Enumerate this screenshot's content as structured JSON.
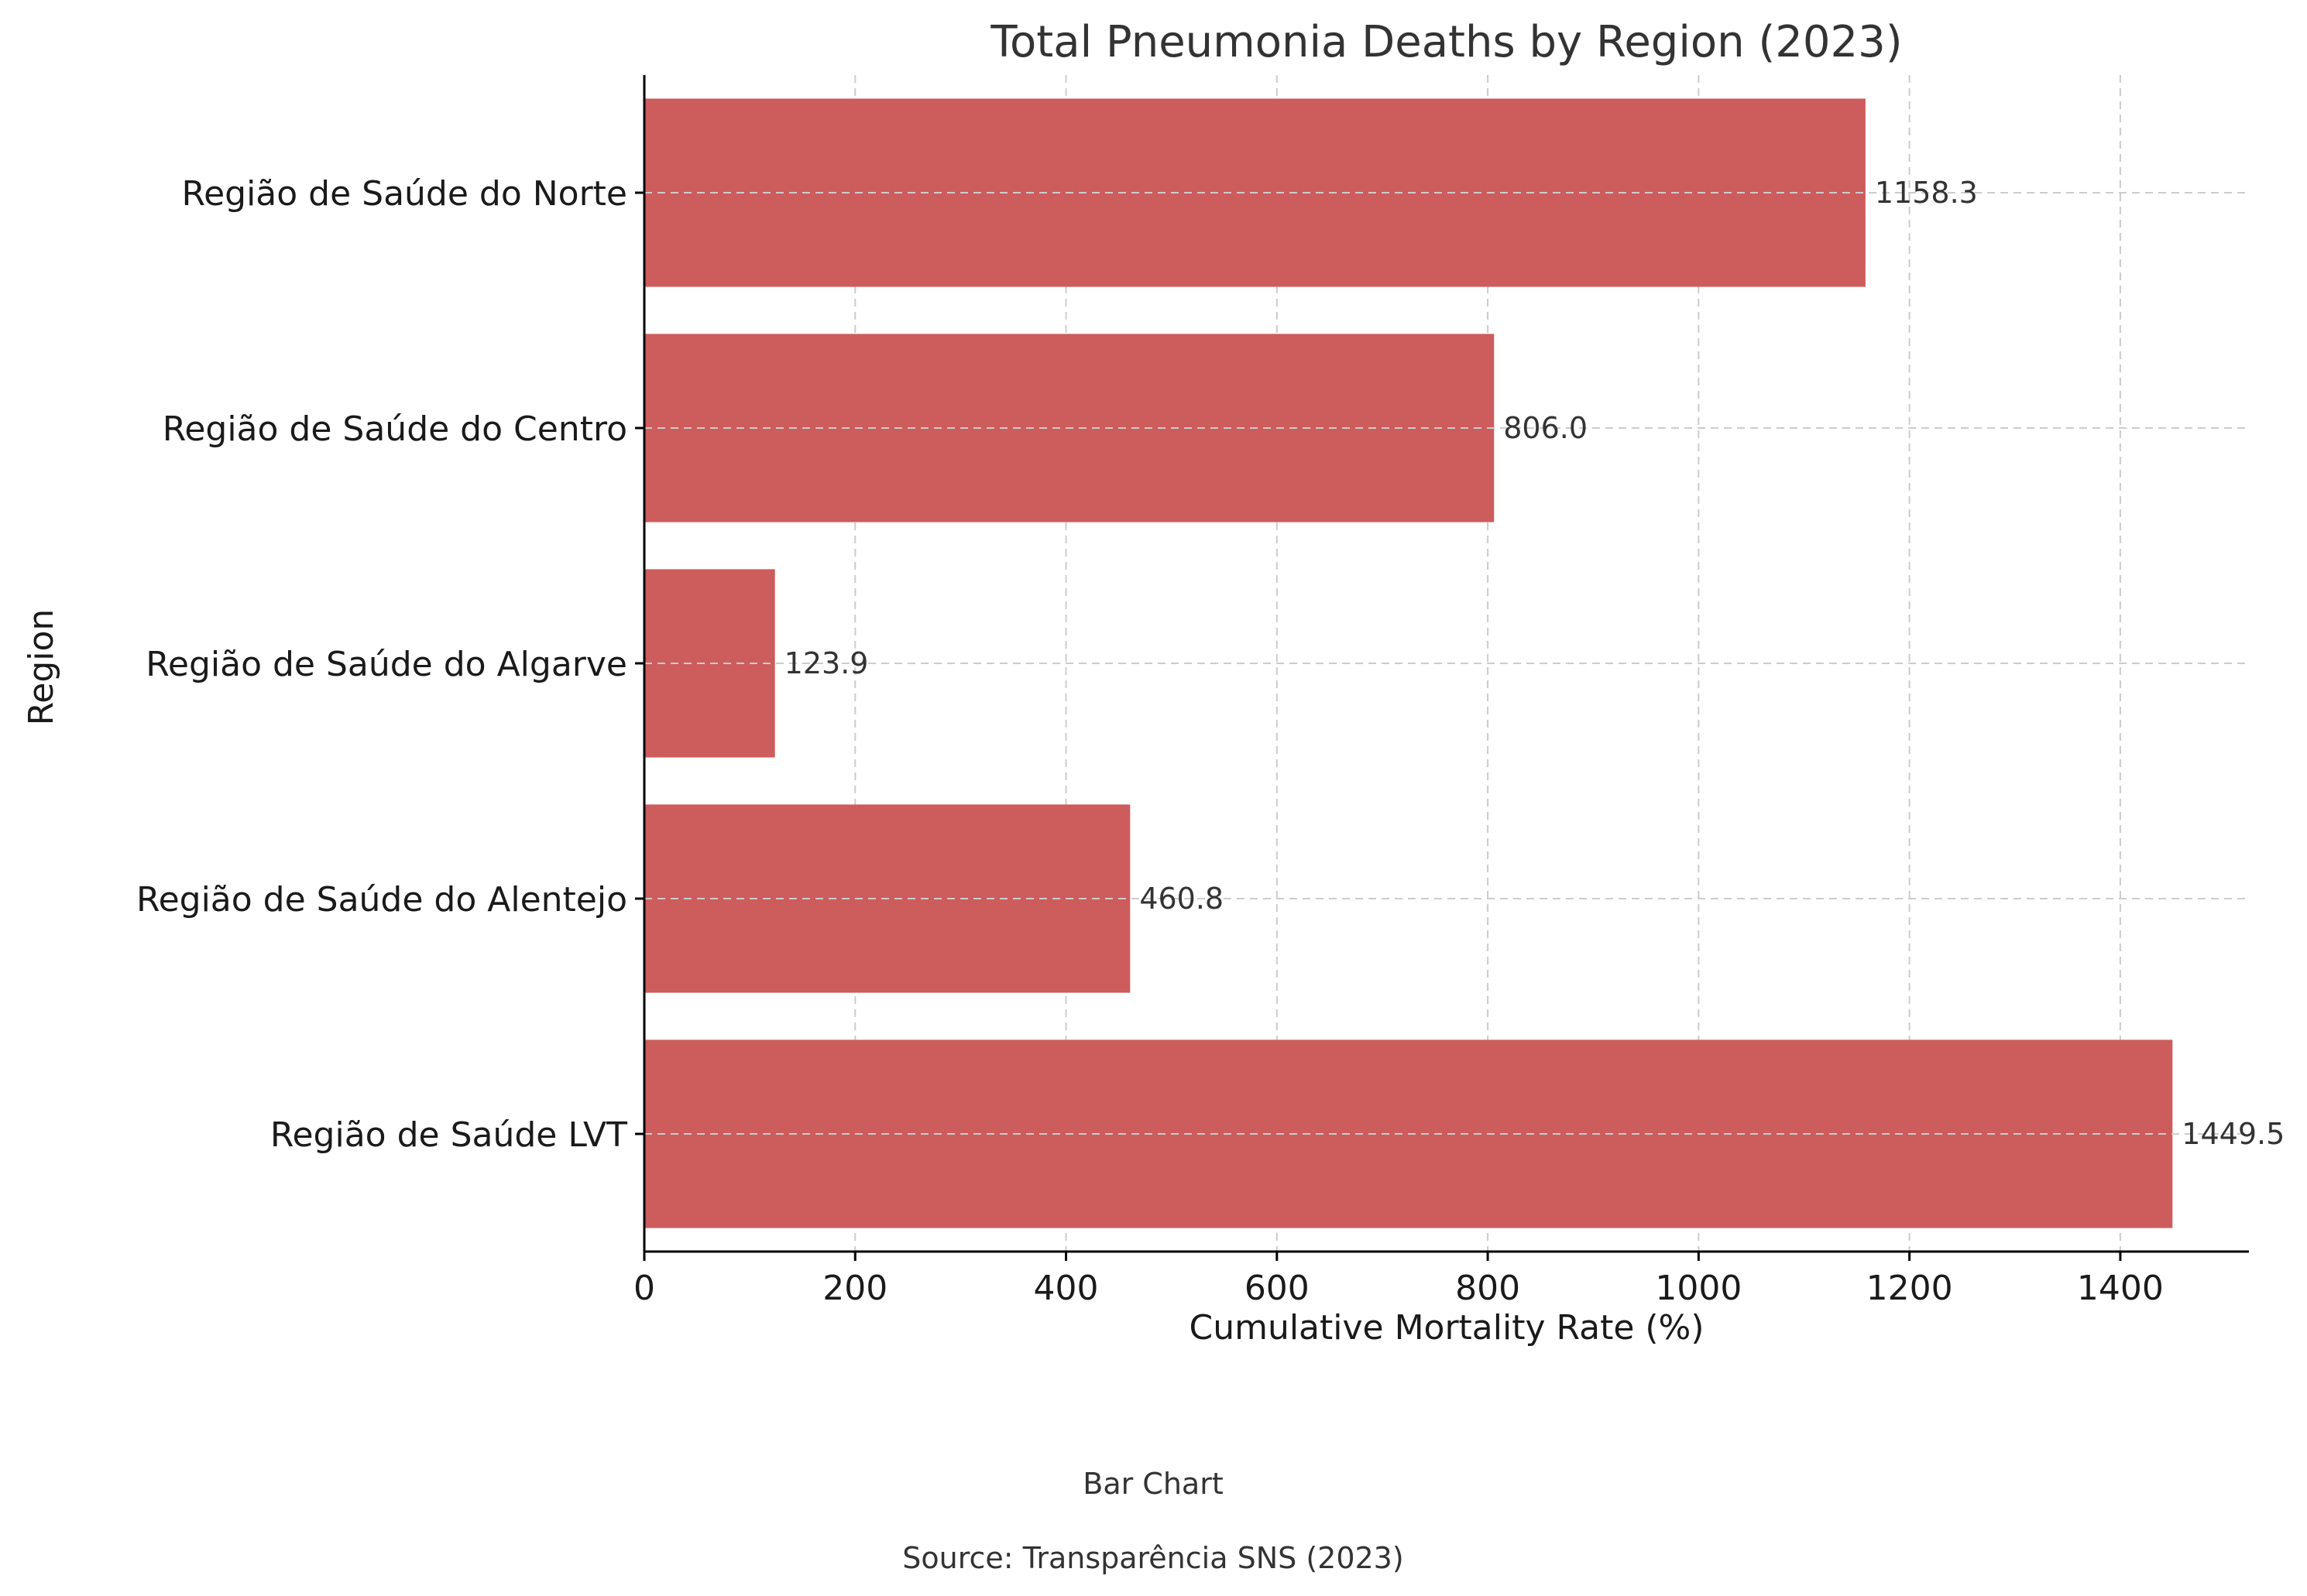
{
  "chart_data": {
    "type": "bar",
    "orientation": "horizontal",
    "title": "Total Pneumonia Deaths by Region (2023)",
    "xlabel": "Cumulative Mortality Rate (%)",
    "ylabel": "Region",
    "categories": [
      "Região de Saúde do Norte",
      "Região de Saúde do Centro",
      "Região de Saúde do Algarve",
      "Região de Saúde do Alentejo",
      "Região de Saúde LVT"
    ],
    "values": [
      1158.3,
      806.0,
      123.9,
      460.8,
      1449.5
    ],
    "value_labels": [
      "1158.3",
      "806.0",
      "123.9",
      "460.8",
      "1449.5"
    ],
    "xlim": [
      0,
      1522
    ],
    "xticks": [
      0,
      200,
      400,
      600,
      800,
      1000,
      1200,
      1400
    ],
    "grid": true,
    "bar_color": "#cd5c5c"
  },
  "footer": {
    "subtitle": "Bar Chart",
    "source": "Source: Transparência SNS (2023)"
  }
}
